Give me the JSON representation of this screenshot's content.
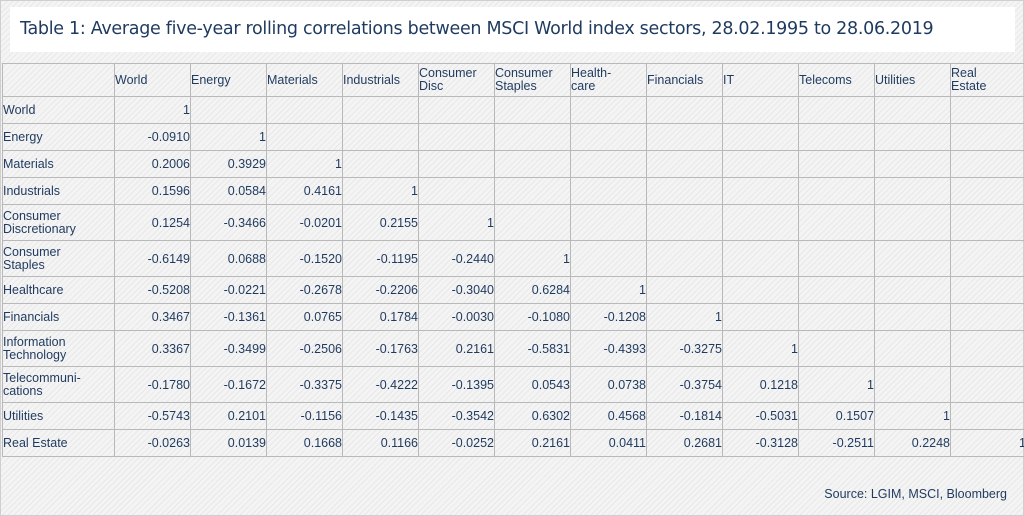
{
  "title": "Table 1: Average five-year rolling correlations between MSCI World index sectors, 28.02.1995 to 28.06.2019",
  "source": "Source: LGIM, MSCI, Bloomberg",
  "table": {
    "columns": [
      {
        "lines": [
          "World"
        ]
      },
      {
        "lines": [
          "Energy"
        ]
      },
      {
        "lines": [
          "Materials"
        ]
      },
      {
        "lines": [
          "Industrials"
        ]
      },
      {
        "lines": [
          "Consumer",
          "Disc"
        ]
      },
      {
        "lines": [
          "Consumer",
          "Staples"
        ]
      },
      {
        "lines": [
          "Health-",
          "care"
        ]
      },
      {
        "lines": [
          "Financials"
        ]
      },
      {
        "lines": [
          "IT"
        ]
      },
      {
        "lines": [
          "Telecoms"
        ]
      },
      {
        "lines": [
          "Utilities"
        ]
      },
      {
        "lines": [
          "Real",
          "Estate"
        ]
      }
    ],
    "rows": [
      {
        "label": [
          "World"
        ],
        "values": [
          "1"
        ]
      },
      {
        "label": [
          "Energy"
        ],
        "values": [
          "-0.0910",
          "1"
        ]
      },
      {
        "label": [
          "Materials"
        ],
        "values": [
          "0.2006",
          "0.3929",
          "1"
        ]
      },
      {
        "label": [
          "Industrials"
        ],
        "values": [
          "0.1596",
          "0.0584",
          "0.4161",
          "1"
        ]
      },
      {
        "label": [
          "Consumer",
          "Discretionary"
        ],
        "values": [
          "0.1254",
          "-0.3466",
          "-0.0201",
          "0.2155",
          "1"
        ]
      },
      {
        "label": [
          "Consumer",
          "Staples"
        ],
        "values": [
          "-0.6149",
          "0.0688",
          "-0.1520",
          "-0.1195",
          "-0.2440",
          "1"
        ]
      },
      {
        "label": [
          "Healthcare"
        ],
        "values": [
          "-0.5208",
          "-0.0221",
          "-0.2678",
          "-0.2206",
          "-0.3040",
          "0.6284",
          "1"
        ]
      },
      {
        "label": [
          "Financials"
        ],
        "values": [
          "0.3467",
          "-0.1361",
          "0.0765",
          "0.1784",
          "-0.0030",
          "-0.1080",
          "-0.1208",
          "1"
        ]
      },
      {
        "label": [
          "Information",
          "Technology"
        ],
        "values": [
          "0.3367",
          "-0.3499",
          "-0.2506",
          "-0.1763",
          "0.2161",
          "-0.5831",
          "-0.4393",
          "-0.3275",
          "1"
        ]
      },
      {
        "label": [
          "Telecommuni-",
          "cations"
        ],
        "values": [
          "-0.1780",
          "-0.1672",
          "-0.3375",
          "-0.4222",
          "-0.1395",
          "0.0543",
          "0.0738",
          "-0.3754",
          "0.1218",
          "1"
        ]
      },
      {
        "label": [
          "Utilities"
        ],
        "values": [
          "-0.5743",
          "0.2101",
          "-0.1156",
          "-0.1435",
          "-0.3542",
          "0.6302",
          "0.4568",
          "-0.1814",
          "-0.5031",
          "0.1507",
          "1"
        ]
      },
      {
        "label": [
          "Real Estate"
        ],
        "values": [
          "-0.0263",
          "0.0139",
          "0.1668",
          "0.1166",
          "-0.0252",
          "0.2161",
          "0.0411",
          "0.2681",
          "-0.3128",
          "-0.2511",
          "0.2248",
          "1"
        ]
      }
    ]
  }
}
